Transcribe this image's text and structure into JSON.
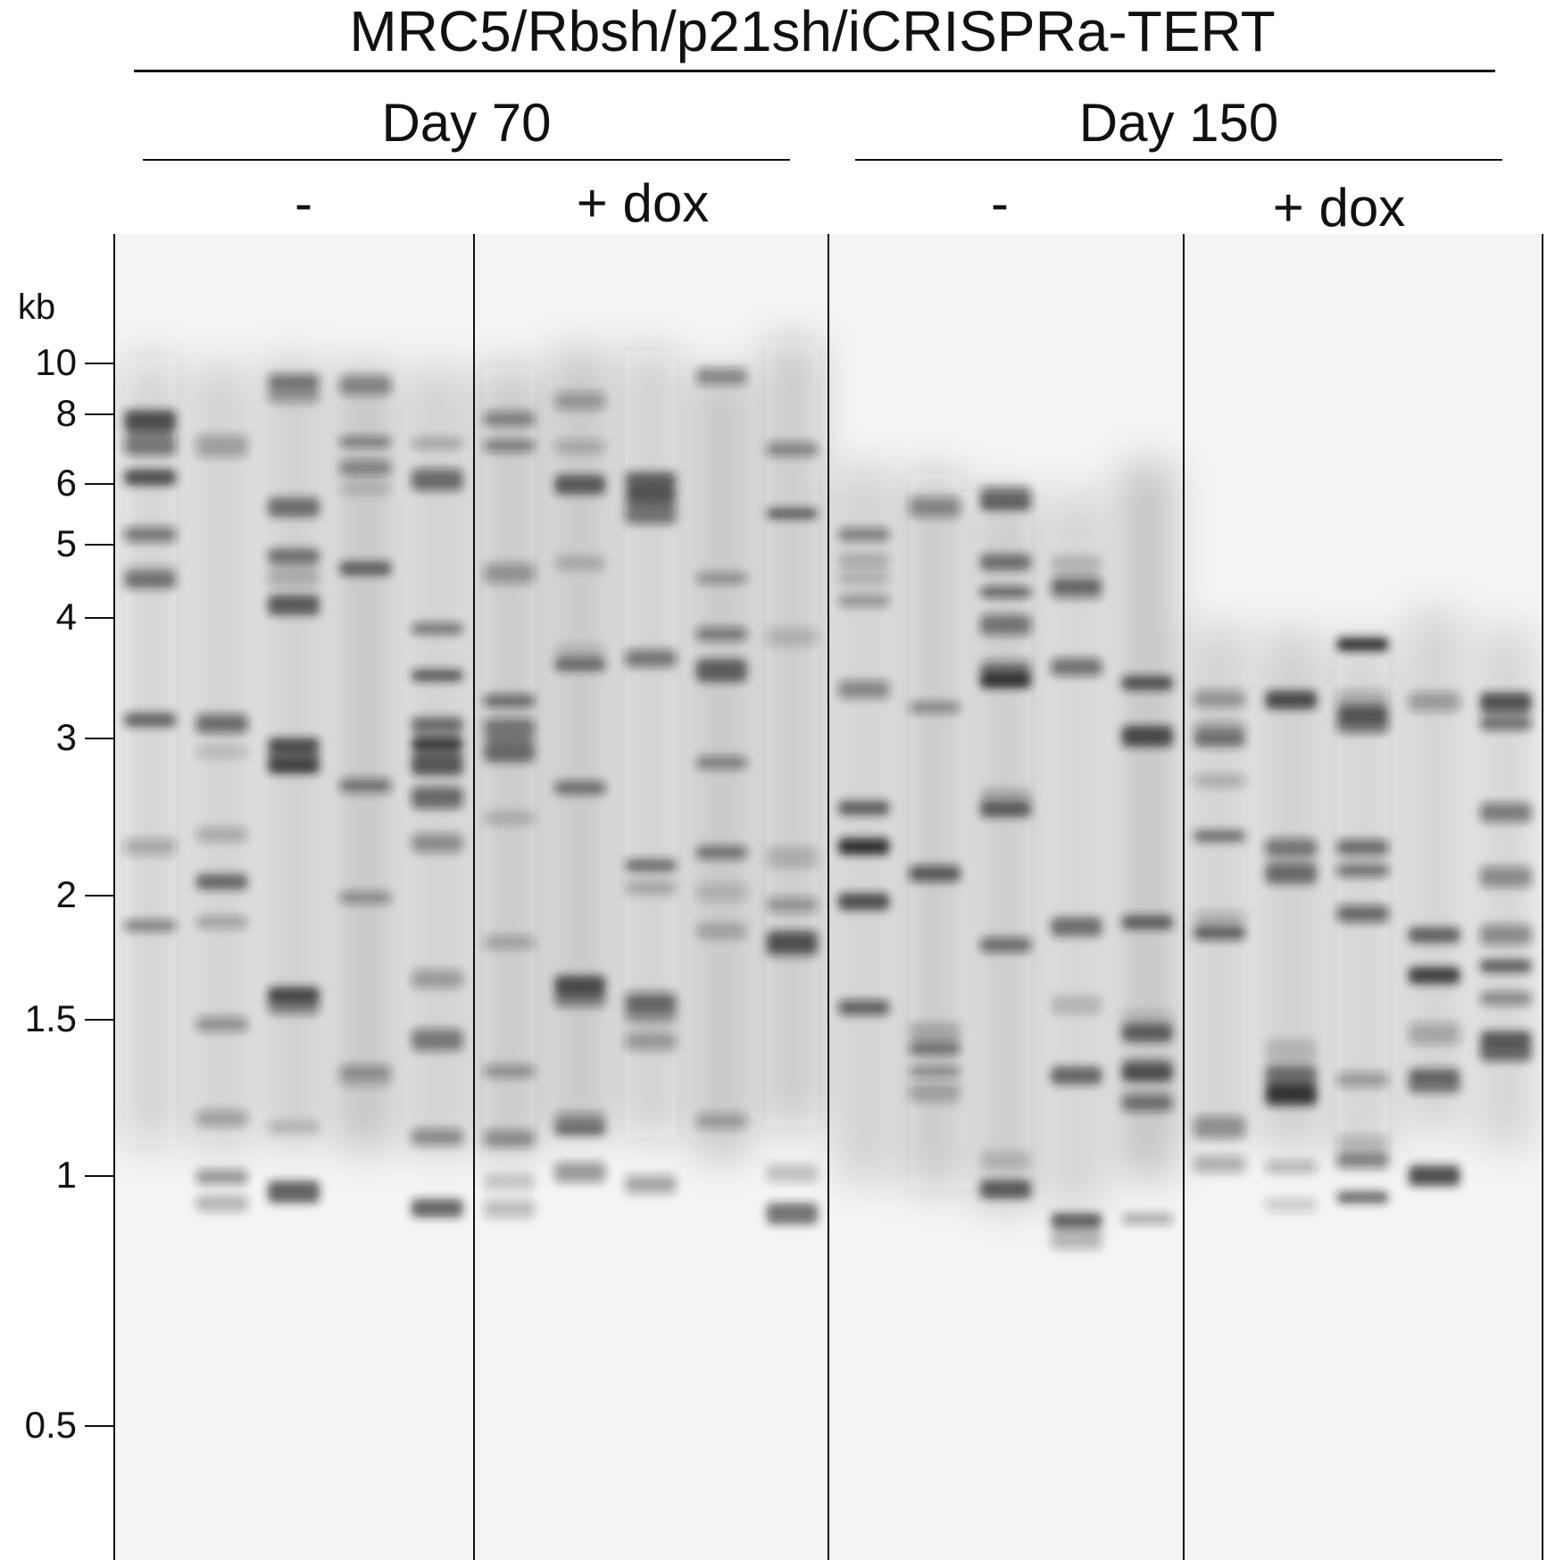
{
  "figure": {
    "title": "MRC5/Rbsh/p21sh/iCRISPRa-TERT",
    "groups": [
      {
        "label": "Day 70",
        "treatments": [
          {
            "label": "-"
          },
          {
            "label": "+ dox"
          }
        ]
      },
      {
        "label": "Day 150",
        "treatments": [
          {
            "label": "-"
          },
          {
            "label": "+ dox"
          }
        ]
      }
    ],
    "ladder": {
      "unit": "kb",
      "markers": [
        "10",
        "8",
        "6",
        "5",
        "4",
        "3",
        "2",
        "1.5",
        "1",
        "0.5"
      ]
    },
    "lanes_per_treatment": 5
  },
  "colors": {
    "background": "#ffffff",
    "gel_background": "#f4f4f4",
    "band": "#1a1a1a",
    "text": "#111111"
  }
}
